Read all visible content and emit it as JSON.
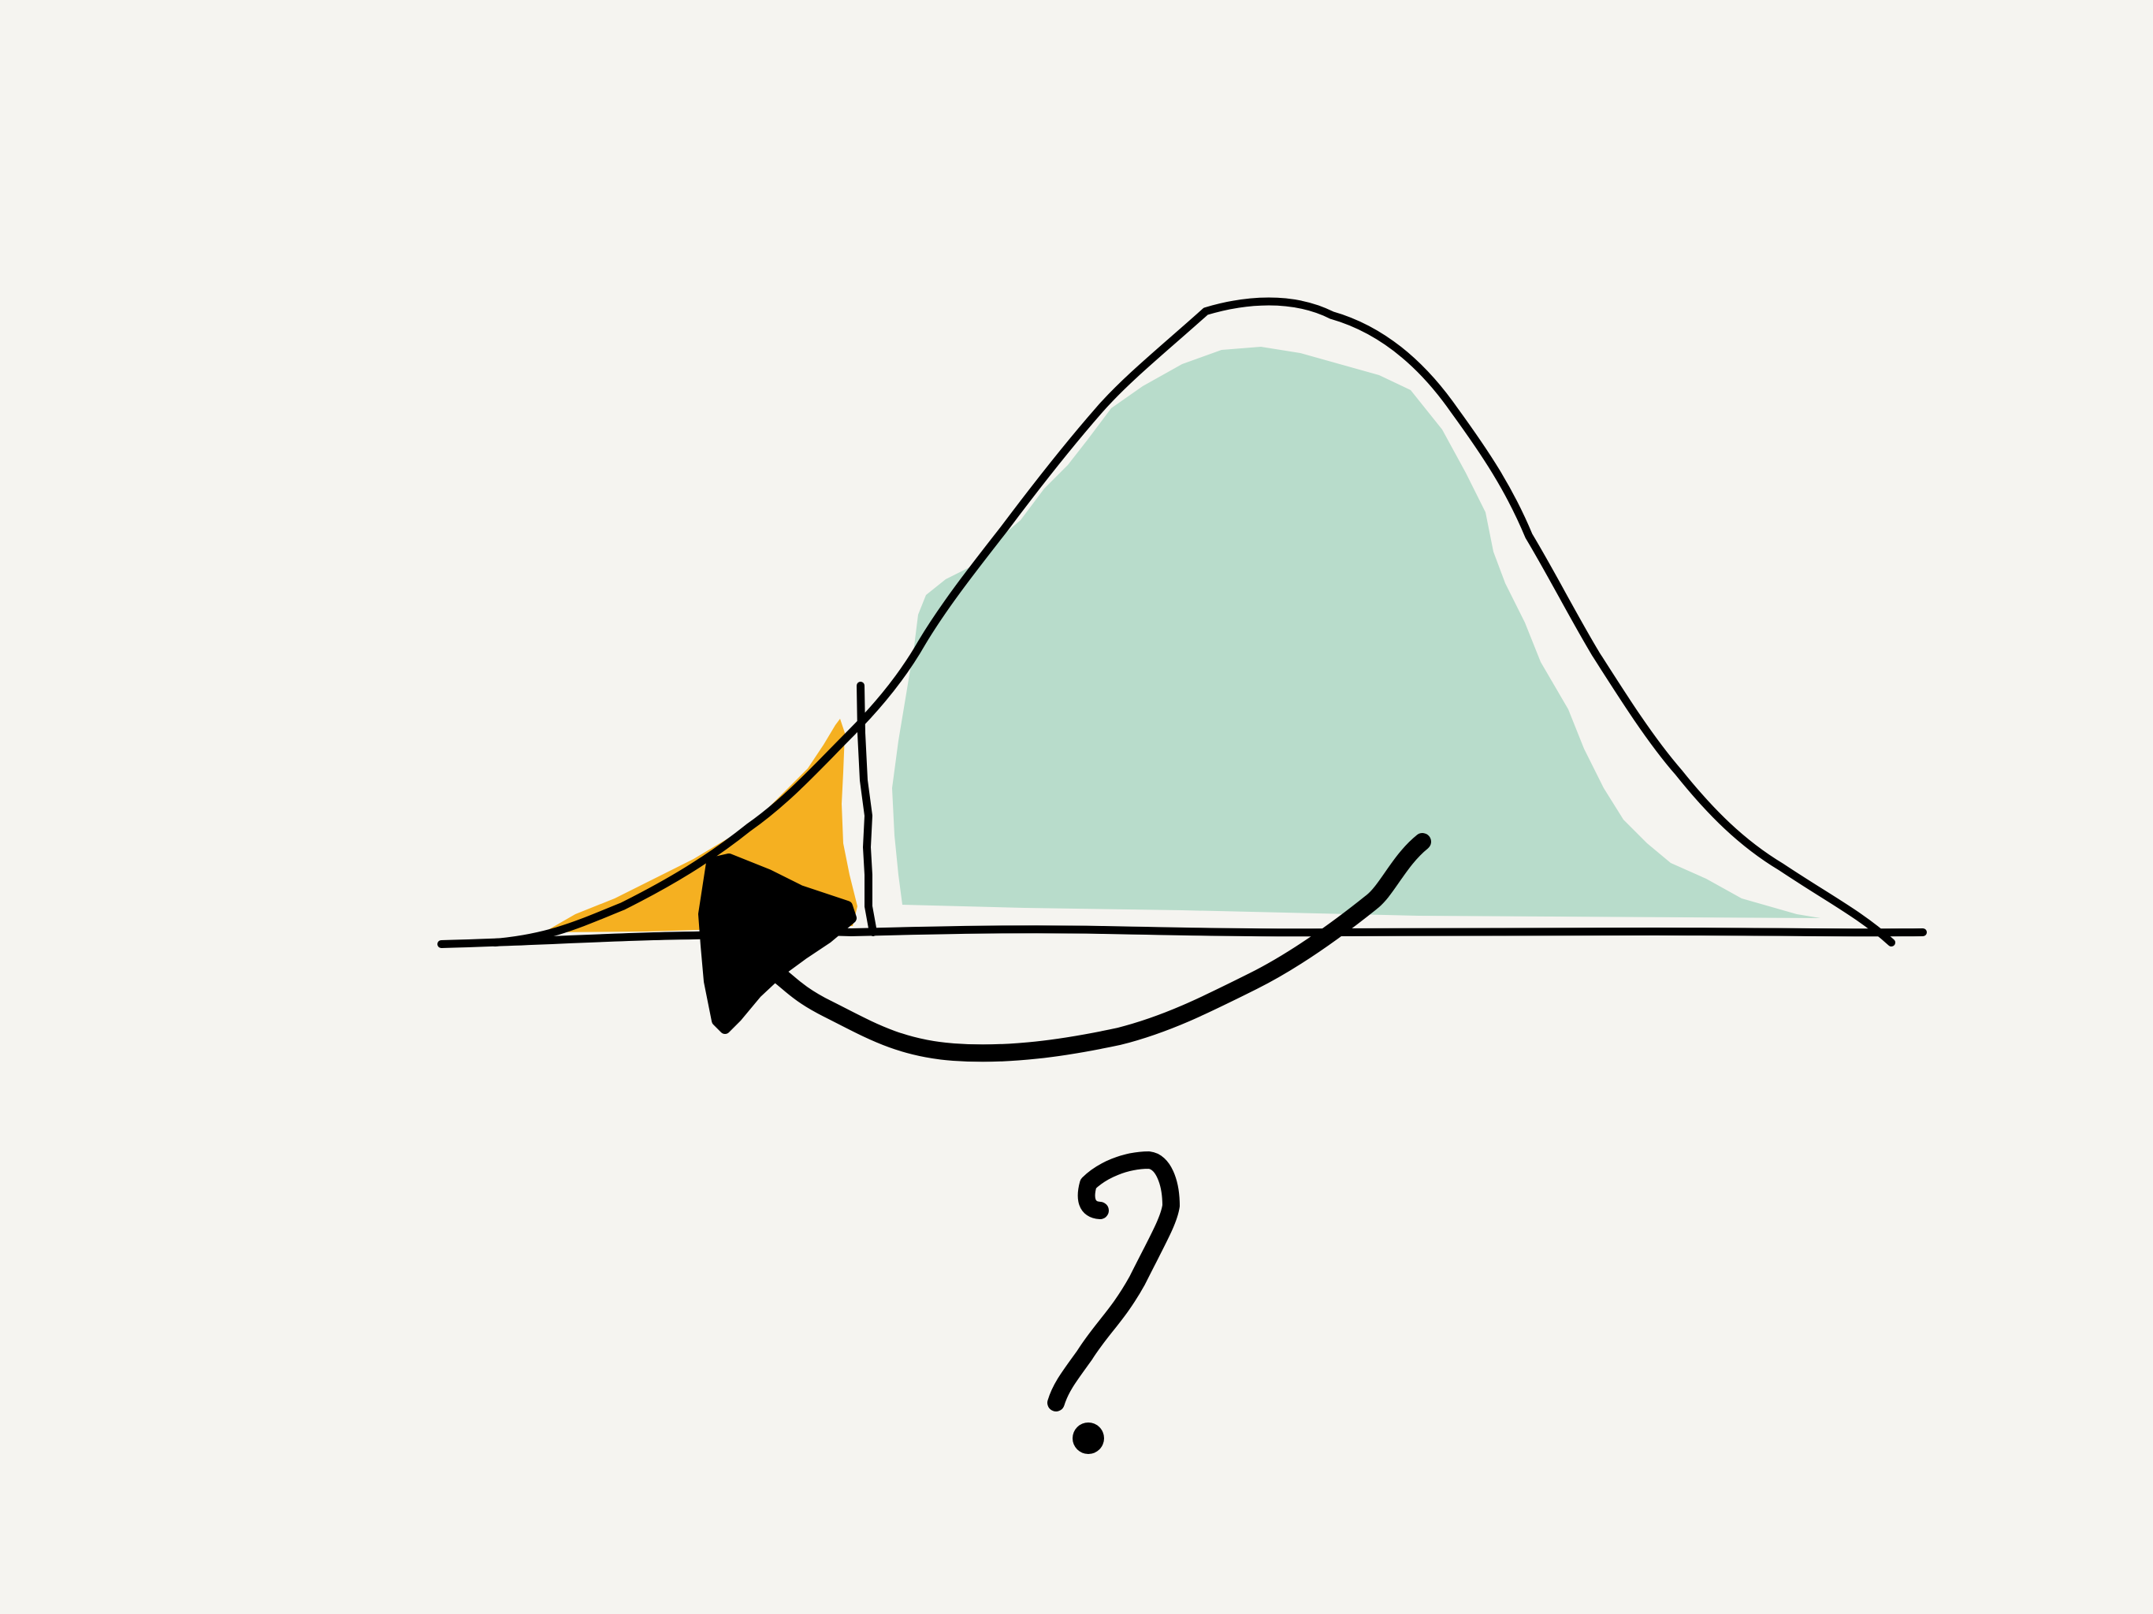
{
  "diagram": {
    "question_symbol": "?",
    "colors": {
      "background": "#f5f4f0",
      "curve": "#000000",
      "tail_fill": "#f5b021",
      "body_fill": "#b8dccb",
      "arrow": "#000000"
    },
    "icons": {
      "curve": "bell-curve-icon",
      "arrow": "curved-arrow-icon",
      "question": "question-mark-icon"
    }
  }
}
